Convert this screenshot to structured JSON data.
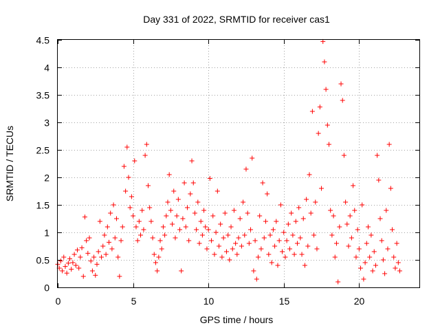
{
  "chart_data": {
    "type": "scatter",
    "title": "Day 331 of 2022, SRMTID for receiver cas1",
    "xlabel": "GPS time / hours",
    "ylabel": "SRMTID / TECUs",
    "xlim": [
      0,
      24
    ],
    "ylim": [
      0,
      4.5
    ],
    "x_ticks": [
      0,
      5,
      10,
      15,
      20
    ],
    "x_tick_labels": [
      "0",
      "5",
      "10",
      "15",
      "20"
    ],
    "y_ticks": [
      0,
      0.5,
      1,
      1.5,
      2,
      2.5,
      3,
      3.5,
      4,
      4.5
    ],
    "y_tick_labels": [
      "0",
      "0.5",
      "1",
      "1.5",
      "2",
      "2.5",
      "3",
      "3.5",
      "4",
      "4.5"
    ],
    "grid": true,
    "marker": "+",
    "marker_color": "#ff0000",
    "series": [
      {
        "name": "SRMTID",
        "points": [
          [
            0.0,
            0.42
          ],
          [
            0.1,
            0.35
          ],
          [
            0.2,
            0.48
          ],
          [
            0.3,
            0.3
          ],
          [
            0.4,
            0.55
          ],
          [
            0.5,
            0.38
          ],
          [
            0.6,
            0.26
          ],
          [
            0.7,
            0.44
          ],
          [
            0.8,
            0.52
          ],
          [
            0.9,
            0.33
          ],
          [
            1.0,
            0.45
          ],
          [
            1.1,
            0.6
          ],
          [
            1.2,
            0.4
          ],
          [
            1.3,
            0.68
          ],
          [
            1.4,
            0.35
          ],
          [
            1.5,
            0.55
          ],
          [
            1.6,
            0.72
          ],
          [
            1.7,
            0.2
          ],
          [
            1.8,
            1.28
          ],
          [
            1.9,
            0.85
          ],
          [
            2.0,
            0.62
          ],
          [
            2.1,
            0.9
          ],
          [
            2.2,
            0.48
          ],
          [
            2.3,
            0.3
          ],
          [
            2.4,
            0.55
          ],
          [
            2.5,
            0.22
          ],
          [
            2.6,
            0.42
          ],
          [
            2.7,
            0.65
          ],
          [
            2.8,
            1.2
          ],
          [
            2.9,
            0.55
          ],
          [
            3.0,
            0.75
          ],
          [
            3.1,
            0.95
          ],
          [
            3.2,
            0.6
          ],
          [
            3.3,
            1.1
          ],
          [
            3.4,
            0.82
          ],
          [
            3.5,
            1.35
          ],
          [
            3.6,
            0.7
          ],
          [
            3.7,
            1.5
          ],
          [
            3.8,
            0.9
          ],
          [
            3.9,
            1.25
          ],
          [
            4.0,
            0.55
          ],
          [
            4.1,
            0.2
          ],
          [
            4.2,
            0.85
          ],
          [
            4.3,
            1.1
          ],
          [
            4.4,
            2.2
          ],
          [
            4.5,
            1.75
          ],
          [
            4.6,
            2.55
          ],
          [
            4.7,
            2.0
          ],
          [
            4.8,
            1.45
          ],
          [
            4.9,
            1.65
          ],
          [
            5.0,
            1.3
          ],
          [
            5.1,
            2.3
          ],
          [
            5.2,
            1.1
          ],
          [
            5.3,
            0.85
          ],
          [
            5.4,
            1.2
          ],
          [
            5.5,
            0.95
          ],
          [
            5.6,
            1.4
          ],
          [
            5.7,
            1.05
          ],
          [
            5.8,
            2.4
          ],
          [
            5.9,
            2.6
          ],
          [
            6.0,
            1.85
          ],
          [
            6.1,
            1.45
          ],
          [
            6.2,
            1.2
          ],
          [
            6.3,
            0.9
          ],
          [
            6.4,
            0.6
          ],
          [
            6.5,
            0.45
          ],
          [
            6.6,
            0.3
          ],
          [
            6.7,
            0.55
          ],
          [
            6.8,
            0.85
          ],
          [
            6.9,
            0.7
          ],
          [
            7.0,
            1.1
          ],
          [
            7.1,
            0.95
          ],
          [
            7.2,
            1.3
          ],
          [
            7.3,
            1.55
          ],
          [
            7.4,
            2.05
          ],
          [
            7.5,
            1.4
          ],
          [
            7.6,
            1.15
          ],
          [
            7.7,
            1.75
          ],
          [
            7.8,
            0.9
          ],
          [
            7.9,
            1.3
          ],
          [
            8.0,
            1.6
          ],
          [
            8.1,
            1.05
          ],
          [
            8.2,
            0.3
          ],
          [
            8.3,
            1.25
          ],
          [
            8.4,
            1.9
          ],
          [
            8.5,
            1.1
          ],
          [
            8.6,
            1.45
          ],
          [
            8.7,
            0.85
          ],
          [
            8.8,
            1.7
          ],
          [
            8.9,
            2.3
          ],
          [
            9.0,
            1.9
          ],
          [
            9.1,
            1.35
          ],
          [
            9.2,
            1.05
          ],
          [
            9.3,
            1.55
          ],
          [
            9.4,
            0.8
          ],
          [
            9.5,
            1.2
          ],
          [
            9.6,
            0.95
          ],
          [
            9.7,
            1.4
          ],
          [
            9.8,
            1.1
          ],
          [
            9.9,
            0.7
          ],
          [
            10.0,
            1.05
          ],
          [
            10.1,
            1.98
          ],
          [
            10.2,
            0.85
          ],
          [
            10.3,
            1.3
          ],
          [
            10.4,
            0.6
          ],
          [
            10.5,
            1.0
          ],
          [
            10.6,
            1.75
          ],
          [
            10.7,
            0.75
          ],
          [
            10.8,
            1.15
          ],
          [
            10.9,
            0.55
          ],
          [
            11.0,
            0.9
          ],
          [
            11.1,
            1.35
          ],
          [
            11.2,
            0.65
          ],
          [
            11.3,
            0.95
          ],
          [
            11.4,
            0.5
          ],
          [
            11.5,
            1.1
          ],
          [
            11.6,
            0.7
          ],
          [
            11.7,
            1.4
          ],
          [
            11.8,
            0.8
          ],
          [
            11.9,
            0.6
          ],
          [
            12.0,
            0.9
          ],
          [
            12.1,
            1.25
          ],
          [
            12.2,
            0.75
          ],
          [
            12.3,
            1.55
          ],
          [
            12.4,
            0.95
          ],
          [
            12.5,
            2.15
          ],
          [
            12.6,
            1.35
          ],
          [
            12.7,
            0.8
          ],
          [
            12.8,
            1.05
          ],
          [
            12.9,
            2.35
          ],
          [
            13.0,
            0.3
          ],
          [
            13.1,
            0.85
          ],
          [
            13.2,
            0.15
          ],
          [
            13.3,
            0.55
          ],
          [
            13.4,
            1.3
          ],
          [
            13.5,
            0.7
          ],
          [
            13.6,
            1.9
          ],
          [
            13.7,
            0.9
          ],
          [
            13.8,
            1.2
          ],
          [
            13.9,
            1.7
          ],
          [
            14.0,
            0.6
          ],
          [
            14.1,
            0.95
          ],
          [
            14.2,
            0.45
          ],
          [
            14.3,
            1.05
          ],
          [
            14.4,
            0.75
          ],
          [
            14.5,
            1.2
          ],
          [
            14.6,
            0.4
          ],
          [
            14.7,
            0.85
          ],
          [
            14.8,
            1.5
          ],
          [
            14.9,
            0.65
          ],
          [
            15.0,
            1.0
          ],
          [
            15.1,
            0.55
          ],
          [
            15.2,
            0.85
          ],
          [
            15.3,
            1.15
          ],
          [
            15.4,
            0.7
          ],
          [
            15.5,
            1.35
          ],
          [
            15.6,
            0.95
          ],
          [
            15.7,
            0.6
          ],
          [
            15.8,
            1.2
          ],
          [
            15.9,
            0.8
          ],
          [
            16.0,
            1.45
          ],
          [
            16.1,
            0.9
          ],
          [
            16.2,
            0.6
          ],
          [
            16.3,
            1.25
          ],
          [
            16.4,
            0.4
          ],
          [
            16.5,
            1.6
          ],
          [
            16.6,
            0.75
          ],
          [
            16.7,
            2.05
          ],
          [
            16.8,
            1.35
          ],
          [
            16.9,
            3.2
          ],
          [
            17.0,
            0.95
          ],
          [
            17.1,
            1.55
          ],
          [
            17.2,
            0.7
          ],
          [
            17.3,
            2.8
          ],
          [
            17.4,
            3.28
          ],
          [
            17.5,
            1.8
          ],
          [
            17.6,
            4.47
          ],
          [
            17.7,
            4.1
          ],
          [
            17.8,
            3.6
          ],
          [
            17.9,
            2.95
          ],
          [
            18.0,
            2.6
          ],
          [
            18.1,
            1.4
          ],
          [
            18.2,
            0.95
          ],
          [
            18.3,
            1.3
          ],
          [
            18.4,
            0.55
          ],
          [
            18.5,
            0.8
          ],
          [
            18.6,
            0.1
          ],
          [
            18.7,
            1.1
          ],
          [
            18.8,
            3.7
          ],
          [
            18.9,
            3.4
          ],
          [
            19.0,
            2.4
          ],
          [
            19.1,
            1.55
          ],
          [
            19.2,
            1.15
          ],
          [
            19.3,
            0.75
          ],
          [
            19.4,
            1.3
          ],
          [
            19.5,
            0.9
          ],
          [
            19.6,
            1.85
          ],
          [
            19.7,
            1.4
          ],
          [
            19.8,
            0.55
          ],
          [
            19.9,
            1.05
          ],
          [
            20.0,
            0.7
          ],
          [
            20.1,
            0.35
          ],
          [
            20.2,
            1.5
          ],
          [
            20.3,
            0.15
          ],
          [
            20.4,
            0.45
          ],
          [
            20.5,
            0.8
          ],
          [
            20.6,
            1.1
          ],
          [
            20.7,
            0.55
          ],
          [
            20.8,
            0.95
          ],
          [
            20.9,
            0.3
          ],
          [
            21.0,
            0.65
          ],
          [
            21.1,
            0.4
          ],
          [
            21.2,
            2.4
          ],
          [
            21.3,
            1.95
          ],
          [
            21.4,
            1.25
          ],
          [
            21.5,
            0.85
          ],
          [
            21.6,
            0.5
          ],
          [
            21.7,
            0.25
          ],
          [
            21.8,
            1.4
          ],
          [
            21.9,
            0.7
          ],
          [
            22.0,
            2.6
          ],
          [
            22.1,
            1.8
          ],
          [
            22.2,
            1.05
          ],
          [
            22.3,
            0.55
          ],
          [
            22.4,
            0.35
          ],
          [
            22.5,
            0.8
          ],
          [
            22.6,
            0.45
          ],
          [
            22.7,
            0.3
          ]
        ]
      }
    ]
  }
}
